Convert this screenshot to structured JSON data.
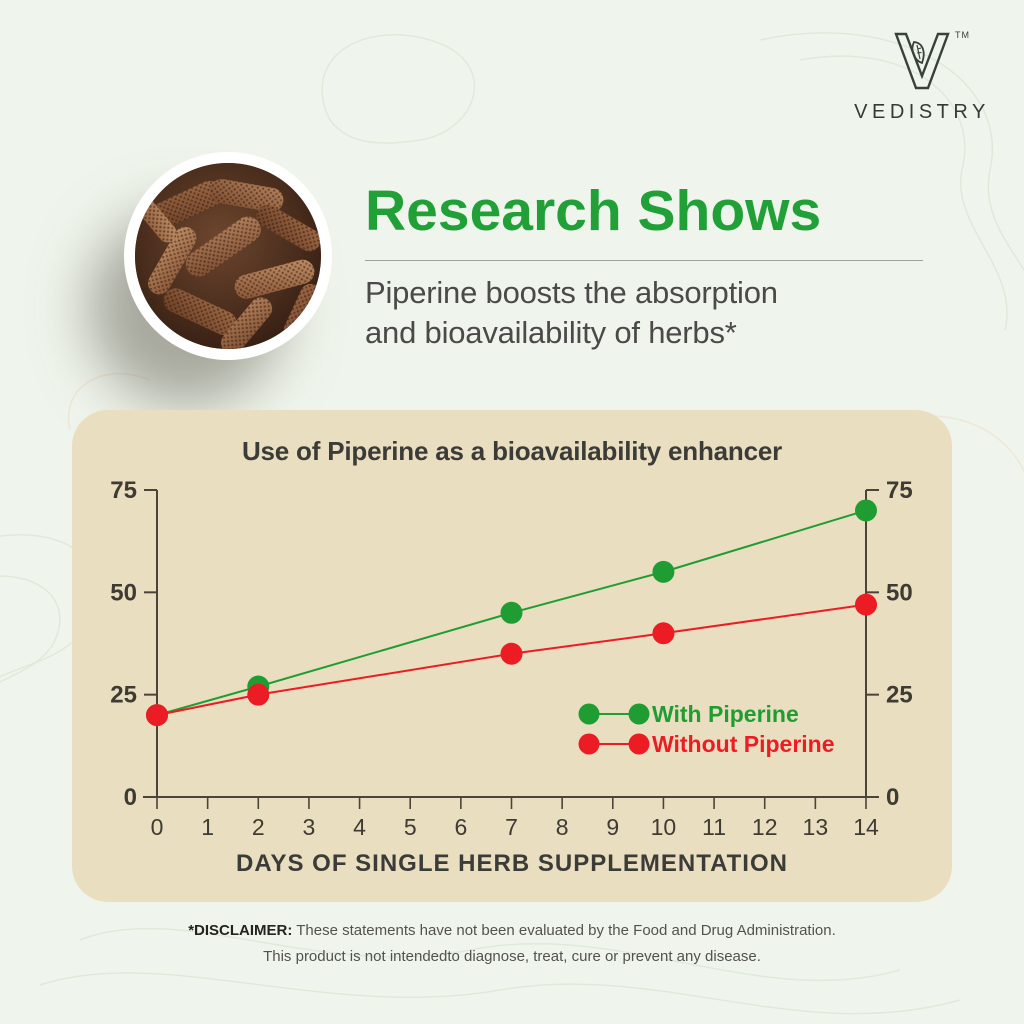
{
  "brand": {
    "wordmark": "VEDISTRY",
    "trademark": "TM",
    "logo_icon": "v-leaf-logo"
  },
  "hero": {
    "headline": "Research Shows",
    "subheadline_line1": "Piperine boosts the absorption",
    "subheadline_line2": "and bioavailability of herbs*",
    "image_icon": "long-pepper-photo"
  },
  "chart_data": {
    "type": "line",
    "title": "Use of Piperine as a bioavailability enhancer",
    "xlabel": "DAYS OF SINGLE HERB SUPPLEMENTATION",
    "ylabel": "",
    "x": [
      0,
      2,
      7,
      10,
      14
    ],
    "series": [
      {
        "name": "With Piperine",
        "color": "#1f9d33",
        "values": [
          20,
          27,
          45,
          55,
          70
        ]
      },
      {
        "name": "Without Piperine",
        "color": "#ec1c24",
        "values": [
          20,
          25,
          35,
          40,
          47
        ]
      }
    ],
    "x_ticks": [
      0,
      1,
      2,
      3,
      4,
      5,
      6,
      7,
      8,
      9,
      10,
      11,
      12,
      13,
      14
    ],
    "y_ticks": [
      0,
      25,
      50,
      75
    ],
    "xlim": [
      0,
      14
    ],
    "ylim": [
      0,
      75
    ],
    "grid": false,
    "dual_y_axis": true,
    "legend_position": "inside-bottom-right",
    "axis_color": "#4b443a",
    "tick_label_color": "#3e3b33",
    "marker_radius": 11
  },
  "disclaimer": {
    "label": "*DISCLAIMER:",
    "line1": " These statements have not been evaluated by the Food and Drug Administration.",
    "line2": "This product is not intendedto diagnose, treat, cure or prevent any disease."
  },
  "colors": {
    "page_bg": "#eff5ec",
    "panel_bg": "#e9debf",
    "headline_green": "#21a038",
    "text_dark": "#3b3b38"
  }
}
